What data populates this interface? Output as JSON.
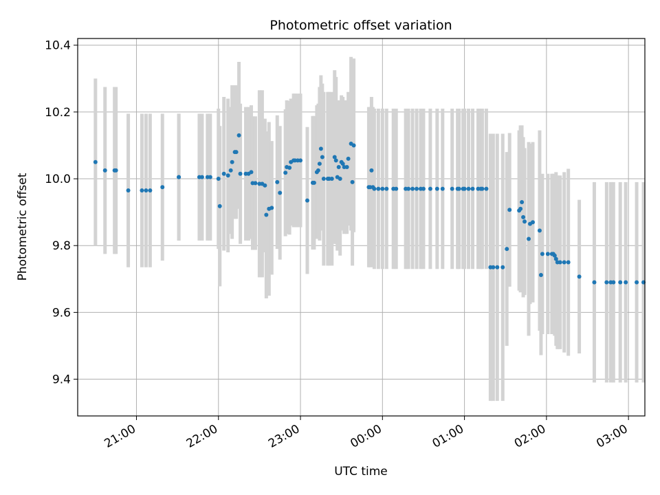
{
  "chart_data": {
    "type": "scatter",
    "title": "Photometric offset variation",
    "xlabel": "UTC time",
    "ylabel": "Photometric offset",
    "x_axis": {
      "kind": "time",
      "domain": [
        "20:17",
        "03:12"
      ],
      "ticks": [
        "21:00",
        "22:00",
        "23:00",
        "00:00",
        "01:00",
        "02:00",
        "03:00"
      ]
    },
    "y_axis": {
      "domain": [
        9.29,
        10.42
      ],
      "ticks": [
        "9.4",
        "9.6",
        "9.8",
        "10.0",
        "10.2",
        "10.4"
      ]
    },
    "grid": true,
    "errorbar_color": "#d3d3d3",
    "marker_color": "#1f77b4",
    "points": [
      [
        "20:30",
        10.05,
        0.25
      ],
      [
        "20:37",
        10.025,
        0.25
      ],
      [
        "20:44",
        10.025,
        0.25
      ],
      [
        "20:45",
        10.025,
        0.25
      ],
      [
        "20:54",
        9.965,
        0.23
      ],
      [
        "21:04",
        9.965,
        0.23
      ],
      [
        "21:07",
        9.965,
        0.23
      ],
      [
        "21:10",
        9.965,
        0.23
      ],
      [
        "21:19",
        9.975,
        0.22
      ],
      [
        "21:31",
        10.005,
        0.19
      ],
      [
        "21:31",
        10.005,
        0.19
      ],
      [
        "21:46",
        10.005,
        0.19
      ],
      [
        "21:48",
        10.005,
        0.19
      ],
      [
        "21:52",
        10.005,
        0.19
      ],
      [
        "21:54",
        10.005,
        0.19
      ],
      [
        "22:00",
        10.0,
        0.21
      ],
      [
        "22:01",
        9.918,
        0.24
      ],
      [
        "22:04",
        10.015,
        0.23
      ],
      [
        "22:07",
        10.01,
        0.23
      ],
      [
        "22:09",
        10.025,
        0.19
      ],
      [
        "22:10",
        10.05,
        0.23
      ],
      [
        "22:12",
        10.08,
        0.2
      ],
      [
        "22:13",
        10.08,
        0.2
      ],
      [
        "22:15",
        10.13,
        0.22
      ],
      [
        "22:16",
        10.015,
        0.21
      ],
      [
        "22:20",
        10.015,
        0.2
      ],
      [
        "22:22",
        10.015,
        0.2
      ],
      [
        "22:24",
        10.02,
        0.2
      ],
      [
        "22:25",
        9.987,
        0.2
      ],
      [
        "22:27",
        9.987,
        0.2
      ],
      [
        "22:30",
        9.985,
        0.28
      ],
      [
        "22:32",
        9.985,
        0.28
      ],
      [
        "22:34",
        9.98,
        0.2
      ],
      [
        "22:35",
        9.892,
        0.25
      ],
      [
        "22:37",
        9.91,
        0.26
      ],
      [
        "22:39",
        9.913,
        0.2
      ],
      [
        "22:43",
        9.99,
        0.2
      ],
      [
        "22:45",
        9.958,
        0.2
      ],
      [
        "22:49",
        10.018,
        0.19
      ],
      [
        "22:50",
        10.035,
        0.2
      ],
      [
        "22:52",
        10.033,
        0.2
      ],
      [
        "22:53",
        10.05,
        0.19
      ],
      [
        "22:55",
        10.055,
        0.2
      ],
      [
        "22:56",
        10.055,
        0.2
      ],
      [
        "22:58",
        10.055,
        0.2
      ],
      [
        "23:00",
        10.055,
        0.2
      ],
      [
        "23:05",
        9.935,
        0.22
      ],
      [
        "23:09",
        9.988,
        0.2
      ],
      [
        "23:10",
        9.988,
        0.2
      ],
      [
        "23:12",
        10.02,
        0.2
      ],
      [
        "23:13",
        10.025,
        0.2
      ],
      [
        "23:14",
        10.045,
        0.23
      ],
      [
        "23:15",
        10.09,
        0.22
      ],
      [
        "23:16",
        10.065,
        0.22
      ],
      [
        "23:17",
        10.0,
        0.26
      ],
      [
        "23:20",
        10.0,
        0.26
      ],
      [
        "23:21",
        10.0,
        0.26
      ],
      [
        "23:23",
        10.0,
        0.26
      ],
      [
        "23:25",
        10.065,
        0.26
      ],
      [
        "23:26",
        10.055,
        0.25
      ],
      [
        "23:27",
        10.005,
        0.22
      ],
      [
        "23:28",
        10.035,
        0.2
      ],
      [
        "23:29",
        10.0,
        0.23
      ],
      [
        "23:30",
        10.05,
        0.2
      ],
      [
        "23:31",
        10.045,
        0.2
      ],
      [
        "23:32",
        10.035,
        0.2
      ],
      [
        "23:34",
        10.035,
        0.2
      ],
      [
        "23:35",
        10.06,
        0.2
      ],
      [
        "23:37",
        10.105,
        0.26
      ],
      [
        "23:38",
        9.99,
        0.25
      ],
      [
        "23:39",
        10.1,
        0.26
      ],
      [
        "23:50",
        9.975,
        0.24
      ],
      [
        "23:51",
        9.975,
        0.24
      ],
      [
        "23:52",
        10.025,
        0.22
      ],
      [
        "23:53",
        9.975,
        0.24
      ],
      [
        "23:54",
        9.97,
        0.24
      ],
      [
        "23:57",
        9.97,
        0.24
      ],
      [
        "00:00",
        9.97,
        0.24
      ],
      [
        "00:03",
        9.97,
        0.24
      ],
      [
        "00:08",
        9.97,
        0.24
      ],
      [
        "00:10",
        9.97,
        0.24
      ],
      [
        "00:17",
        9.97,
        0.24
      ],
      [
        "00:19",
        9.97,
        0.24
      ],
      [
        "00:22",
        9.97,
        0.24
      ],
      [
        "00:25",
        9.97,
        0.24
      ],
      [
        "00:28",
        9.97,
        0.24
      ],
      [
        "00:30",
        9.97,
        0.24
      ],
      [
        "00:35",
        9.97,
        0.24
      ],
      [
        "00:40",
        9.97,
        0.24
      ],
      [
        "00:44",
        9.97,
        0.24
      ],
      [
        "00:51",
        9.97,
        0.24
      ],
      [
        "00:55",
        9.97,
        0.24
      ],
      [
        "00:56",
        9.97,
        0.24
      ],
      [
        "00:59",
        9.97,
        0.24
      ],
      [
        "01:00",
        9.97,
        0.24
      ],
      [
        "01:03",
        9.97,
        0.24
      ],
      [
        "01:06",
        9.97,
        0.24
      ],
      [
        "01:10",
        9.97,
        0.24
      ],
      [
        "01:12",
        9.97,
        0.24
      ],
      [
        "01:13",
        9.97,
        0.24
      ],
      [
        "01:16",
        9.97,
        0.24
      ],
      [
        "01:19",
        9.735,
        0.4
      ],
      [
        "01:21",
        9.735,
        0.4
      ],
      [
        "01:24",
        9.735,
        0.4
      ],
      [
        "01:28",
        9.735,
        0.4
      ],
      [
        "01:31",
        9.79,
        0.29
      ],
      [
        "01:33",
        9.907,
        0.23
      ],
      [
        "01:40",
        9.905,
        0.24
      ],
      [
        "01:41",
        9.91,
        0.25
      ],
      [
        "01:42",
        9.93,
        0.23
      ],
      [
        "01:43",
        9.885,
        0.24
      ],
      [
        "01:44",
        9.872,
        0.22
      ],
      [
        "01:47",
        9.82,
        0.29
      ],
      [
        "01:48",
        9.865,
        0.24
      ],
      [
        "01:50",
        9.87,
        0.24
      ],
      [
        "01:55",
        9.845,
        0.3
      ],
      [
        "01:56",
        9.712,
        0.24
      ],
      [
        "01:57",
        9.775,
        0.24
      ],
      [
        "02:01",
        9.775,
        0.24
      ],
      [
        "02:04",
        9.775,
        0.24
      ],
      [
        "02:05",
        9.775,
        0.24
      ],
      [
        "02:06",
        9.77,
        0.24
      ],
      [
        "02:07",
        9.76,
        0.26
      ],
      [
        "02:08",
        9.75,
        0.26
      ],
      [
        "02:10",
        9.75,
        0.26
      ],
      [
        "02:13",
        9.75,
        0.27
      ],
      [
        "02:16",
        9.75,
        0.28
      ],
      [
        "02:24",
        9.707,
        0.23
      ],
      [
        "02:35",
        9.69,
        0.3
      ],
      [
        "02:44",
        9.69,
        0.3
      ],
      [
        "02:47",
        9.69,
        0.3
      ],
      [
        "02:49",
        9.69,
        0.3
      ],
      [
        "02:54",
        9.69,
        0.3
      ],
      [
        "02:58",
        9.69,
        0.3
      ],
      [
        "03:06",
        9.69,
        0.3
      ],
      [
        "03:11",
        9.69,
        0.3
      ]
    ]
  }
}
